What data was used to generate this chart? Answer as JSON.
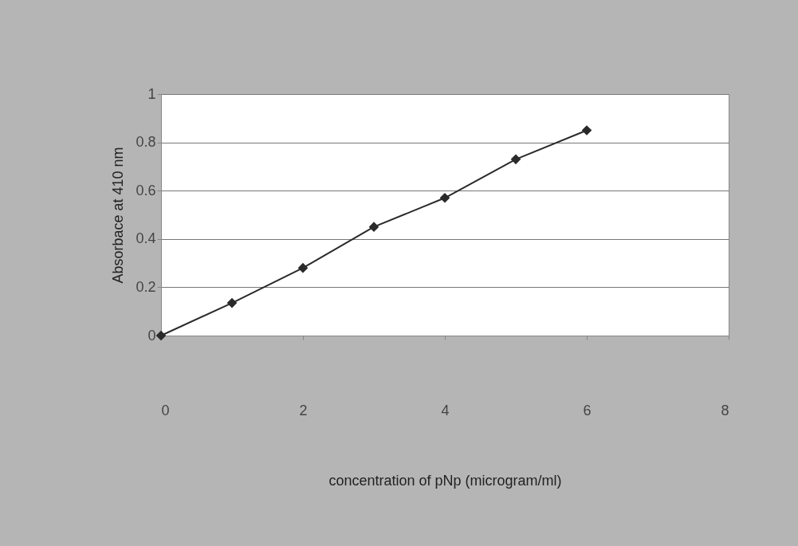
{
  "chart_data": {
    "type": "line",
    "xlabel": "concentration of pNp (microgram/ml)",
    "ylabel": "Absorbace at 410 nm",
    "x": [
      0,
      1,
      2,
      3,
      4,
      5,
      6
    ],
    "series": [
      {
        "color": "#2a2a2a",
        "values": [
          0,
          0.135,
          0.28,
          0.45,
          0.57,
          0.73,
          0.85
        ]
      }
    ],
    "xlim": [
      0,
      8
    ],
    "xticks": [
      0,
      2,
      4,
      6,
      8
    ],
    "ylim": [
      0,
      1
    ],
    "yticks": [
      0,
      0.2,
      0.4,
      0.6,
      0.8,
      1
    ],
    "grid": "y",
    "legend": false,
    "marker": "diamond",
    "line_style": "solid"
  }
}
